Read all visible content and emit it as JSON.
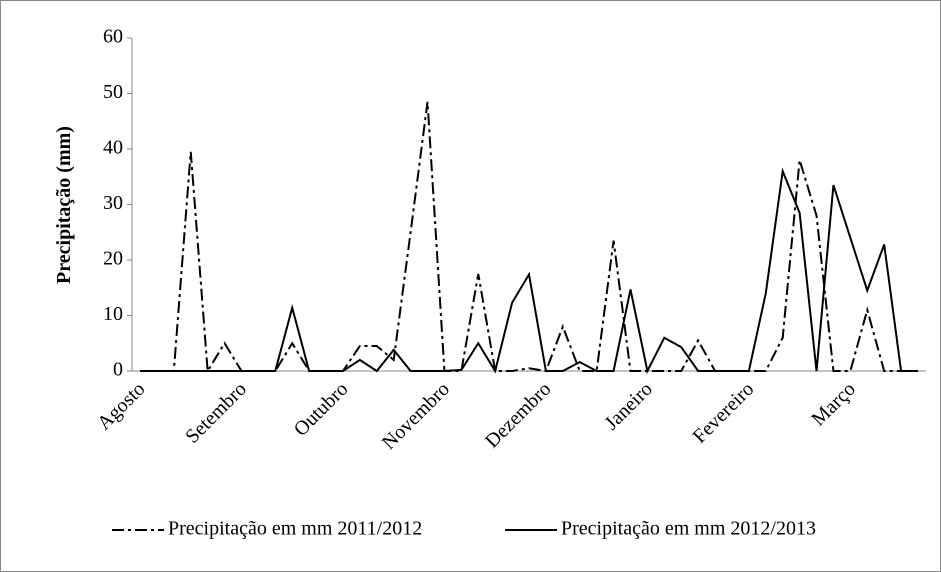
{
  "chart_data": {
    "type": "line",
    "y_label": "Precipitação (mm)",
    "categories": [
      "Agosto",
      null,
      null,
      null,
      null,
      null,
      "Setembro",
      null,
      null,
      null,
      null,
      null,
      "Outubro",
      null,
      null,
      null,
      null,
      null,
      "Novembro",
      null,
      null,
      null,
      null,
      null,
      "Dezembro",
      null,
      null,
      null,
      null,
      null,
      "Janeiro",
      null,
      null,
      null,
      null,
      null,
      "Fevereiro",
      null,
      null,
      null,
      null,
      null,
      "Março",
      null,
      null,
      null,
      null
    ],
    "series": [
      {
        "name": "Precipitação em mm 2011/2012",
        "color": "#000000",
        "dash": true,
        "values": [
          0,
          0,
          0,
          39.5,
          0,
          5,
          0,
          0,
          0,
          5,
          0,
          0,
          0,
          4.5,
          4.5,
          2,
          25,
          48.5,
          0,
          0,
          17.5,
          0,
          0,
          0.5,
          0,
          8,
          0,
          0,
          23.5,
          0,
          0,
          0,
          0,
          5.5,
          0,
          0,
          0,
          0,
          6,
          38,
          28,
          0,
          0,
          11,
          0,
          0,
          0
        ]
      },
      {
        "name": "Precipitação em mm 2012/2013",
        "color": "#000000",
        "dash": false,
        "values": [
          0,
          0,
          0,
          0,
          0,
          0,
          0,
          0,
          0,
          11.4,
          0,
          0,
          0,
          2,
          0,
          3.8,
          0,
          0,
          0,
          0.2,
          5,
          0,
          12.3,
          17.4,
          0,
          0,
          1.6,
          0,
          0,
          14.7,
          0,
          6,
          4.3,
          0,
          0,
          0,
          0,
          14,
          36,
          28.5,
          0,
          33.5,
          24,
          14.5,
          22.8,
          0,
          0
        ]
      }
    ],
    "ylim": [
      0,
      60
    ],
    "yticks": [
      0,
      10,
      20,
      30,
      40,
      50,
      60
    ],
    "legend": "bottom"
  }
}
